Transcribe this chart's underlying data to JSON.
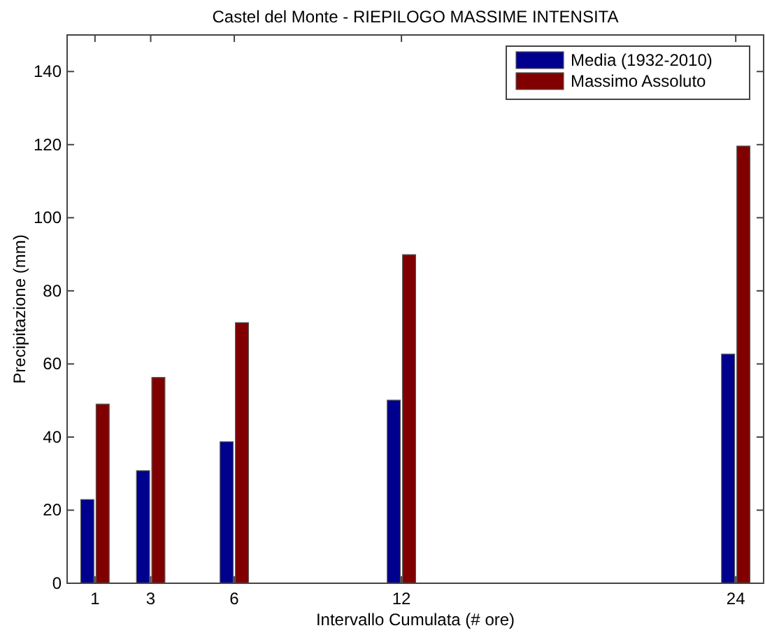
{
  "chart_data": {
    "type": "bar",
    "title": "Castel del Monte - RIEPILOGO MASSIME INTENSITA",
    "xlabel": "Intervallo Cumulata (# ore)",
    "ylabel": "Precipitazione (mm)",
    "x": [
      1,
      3,
      6,
      12,
      24
    ],
    "series": [
      {
        "name": "Media (1932-2010)",
        "color": "#00008f",
        "values": [
          22.9,
          30.8,
          38.7,
          50.1,
          62.7
        ]
      },
      {
        "name": "Massimo Assoluto",
        "color": "#800000",
        "values": [
          49.0,
          56.3,
          71.3,
          89.9,
          119.6
        ]
      }
    ],
    "xlim": [
      0,
      25
    ],
    "xticks": [
      1,
      3,
      6,
      12,
      24
    ],
    "ylim": [
      0,
      150
    ],
    "yticks": [
      0,
      20,
      40,
      60,
      80,
      100,
      120,
      140
    ],
    "grid": false,
    "legend": "top right"
  }
}
